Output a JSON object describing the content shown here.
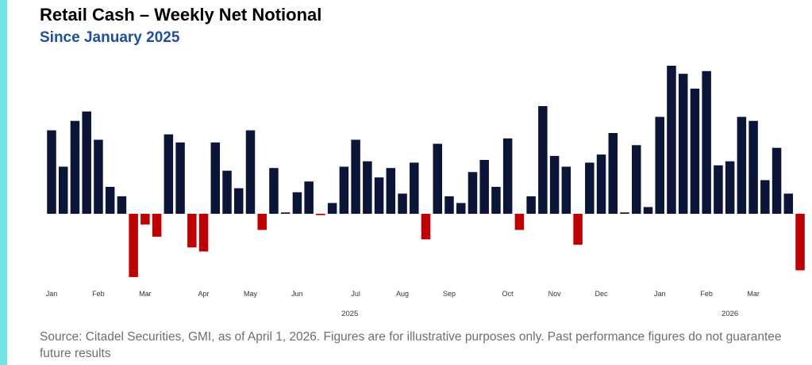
{
  "header": {
    "title": "Retail Cash – Weekly Net Notional",
    "subtitle": "Since January 2025"
  },
  "footer": {
    "source": "Source: Citadel Securities, GMI, as of April 1, 2026. Figures are for illustrative purposes only. Past performance figures do not guarantee future results"
  },
  "colors": {
    "accent": "#6fe3e6",
    "subtitle": "#1f4e9e",
    "positive": "#0b1538",
    "negative": "#c00000",
    "axis_text": "#333333"
  },
  "chart_data": {
    "type": "bar",
    "title": "Retail Cash – Weekly Net Notional",
    "subtitle": "Since January 2025",
    "xlabel": "",
    "ylabel": "",
    "y_axis_visible": false,
    "grid": false,
    "ylim": [
      -55,
      110
    ],
    "values": [
      62,
      35,
      69,
      76,
      55,
      20,
      13,
      -47,
      -8,
      -17,
      59,
      53,
      -25,
      -28,
      53,
      32,
      19,
      62,
      -12,
      34,
      1,
      16,
      24,
      -1,
      8,
      35,
      55,
      39,
      27,
      34,
      15,
      38,
      -19,
      52,
      13,
      8,
      31,
      40,
      20,
      56,
      -12,
      13,
      80,
      43,
      35,
      -23,
      38,
      44,
      60,
      1,
      51,
      5,
      72,
      110,
      104,
      93,
      106,
      36,
      39,
      72,
      69,
      25,
      49,
      15,
      -42
    ],
    "month_labels": [
      {
        "label": "Jan",
        "index": 0
      },
      {
        "label": "Feb",
        "index": 4
      },
      {
        "label": "Mar",
        "index": 8
      },
      {
        "label": "Apr",
        "index": 13
      },
      {
        "label": "May",
        "index": 17
      },
      {
        "label": "Jun",
        "index": 21
      },
      {
        "label": "Jul",
        "index": 26
      },
      {
        "label": "Aug",
        "index": 30
      },
      {
        "label": "Sep",
        "index": 34
      },
      {
        "label": "Oct",
        "index": 39
      },
      {
        "label": "Nov",
        "index": 43
      },
      {
        "label": "Dec",
        "index": 47
      },
      {
        "label": "Jan",
        "index": 52
      },
      {
        "label": "Feb",
        "index": 56
      },
      {
        "label": "Mar",
        "index": 60
      }
    ],
    "year_labels": [
      {
        "label": "2025",
        "index": 25.5
      },
      {
        "label": "2026",
        "index": 58
      }
    ]
  }
}
